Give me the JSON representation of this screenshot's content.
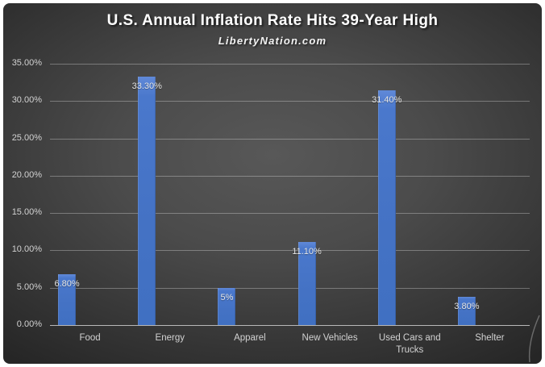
{
  "chart_data": {
    "type": "bar",
    "title": "U.S. Annual Inflation Rate Hits 39-Year High",
    "subtitle": "LibertyNation.com",
    "categories": [
      "Food",
      "Energy",
      "Apparel",
      "New Vehicles",
      "Used Cars and Trucks",
      "Shelter"
    ],
    "values": [
      6.8,
      33.3,
      5,
      11.1,
      31.4,
      3.8
    ],
    "data_labels": [
      "6.80%",
      "33.30%",
      "5%",
      "11.10%",
      "31.40%",
      "3.80%"
    ],
    "xlabel": "",
    "ylabel": "",
    "ylim": [
      0,
      35
    ],
    "y_tick_step": 5,
    "y_tick_labels": [
      "0.00%",
      "5.00%",
      "10.00%",
      "15.00%",
      "20.00%",
      "25.00%",
      "30.00%",
      "35.00%"
    ],
    "grid": true,
    "legend_position": "none",
    "bar_color": "#4472C4",
    "background_color": "#3f3f3f",
    "text_color": "#d2d2d2",
    "data_label_color": "#e6e6e6"
  }
}
